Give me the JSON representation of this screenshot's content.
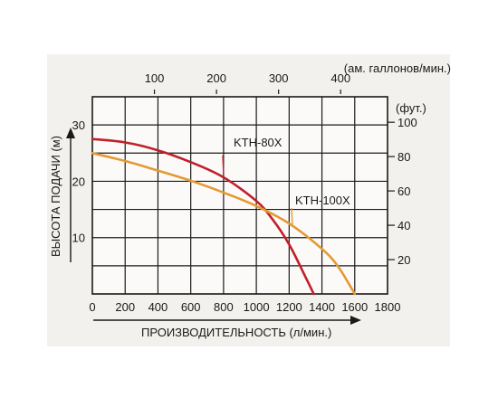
{
  "chart_data": {
    "type": "line",
    "title": "",
    "xlabel": "ПРОИЗВОДИТЕЛЬНОСТЬ (л/мин.)",
    "ylabel": "ВЫСОТА ПОДАЧИ (м)",
    "x2label": "(ам. галлонов/мин.)",
    "y2label": "(фут.)",
    "xlim": [
      0,
      1800
    ],
    "ylim": [
      0,
      35
    ],
    "x_ticks": [
      "0",
      "200",
      "400",
      "600",
      "800",
      "1000",
      "1200",
      "1400",
      "1600",
      "1800"
    ],
    "y_ticks": [
      "10",
      "20",
      "30"
    ],
    "x2_ticks": [
      "100",
      "200",
      "300",
      "400"
    ],
    "y2_ticks": [
      "20",
      "40",
      "60",
      "80",
      "100"
    ],
    "grid": true,
    "legend": "inline labels",
    "series": [
      {
        "name": "KTH-80X",
        "color": "#c0202a",
        "x": [
          0,
          200,
          400,
          600,
          800,
          1000,
          1100,
          1200,
          1300,
          1350
        ],
        "y": [
          27.5,
          26.9,
          25.5,
          23.4,
          20.7,
          16.5,
          13.2,
          8.8,
          3.0,
          0
        ]
      },
      {
        "name": "KTH-100X",
        "color": "#e39a33",
        "x": [
          0,
          200,
          400,
          600,
          800,
          1000,
          1200,
          1400,
          1500,
          1600
        ],
        "y": [
          25.0,
          23.6,
          21.9,
          20.1,
          18.0,
          15.6,
          12.5,
          8.0,
          4.8,
          0
        ]
      }
    ]
  }
}
